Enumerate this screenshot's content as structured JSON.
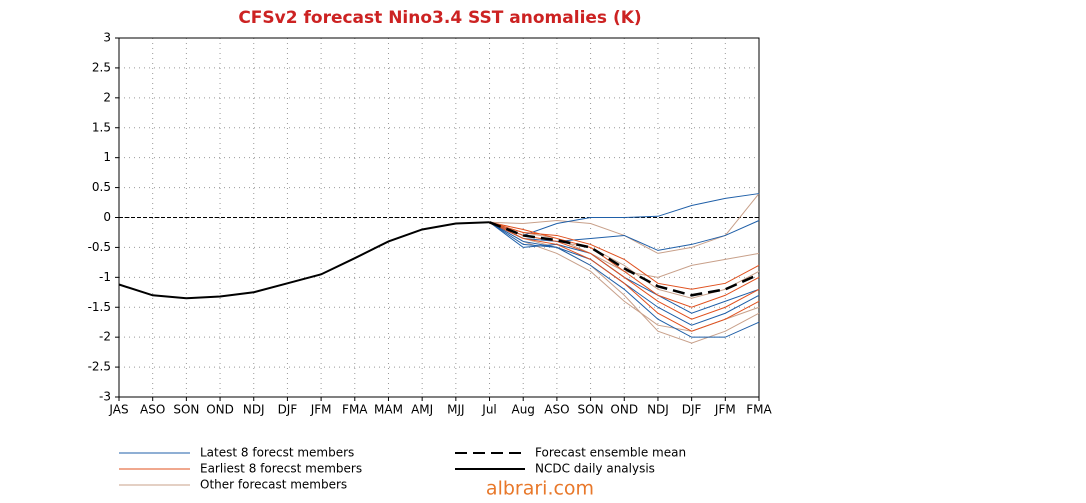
{
  "chart_data": {
    "type": "line",
    "title": "CFSv2 forecast Nino3.4 SST anomalies (K)",
    "categories": [
      "JAS",
      "ASO",
      "SON",
      "OND",
      "NDJ",
      "DJF",
      "JFM",
      "FMA",
      "MAM",
      "AMJ",
      "MJJ",
      "Jul",
      "Aug",
      "ASO",
      "SON",
      "OND",
      "NDJ",
      "DJF",
      "JFM",
      "FMA"
    ],
    "ylim": [
      -3,
      3
    ],
    "yticks": [
      -3,
      -2.5,
      -2,
      -1.5,
      -1,
      -0.5,
      0,
      0.5,
      1,
      1.5,
      2,
      2.5,
      3
    ],
    "grid": true,
    "zero_line": true,
    "series": [
      {
        "name": "Latest 8 forecst members",
        "color": "#1f5fa8",
        "members": [
          [
            null,
            null,
            null,
            null,
            null,
            null,
            null,
            null,
            null,
            null,
            null,
            -0.08,
            -0.3,
            -0.1,
            0,
            0,
            0.02,
            0.2,
            0.32,
            0.4
          ],
          [
            null,
            null,
            null,
            null,
            null,
            null,
            null,
            null,
            null,
            null,
            null,
            -0.08,
            -0.35,
            -0.4,
            -0.35,
            -0.3,
            -0.55,
            -0.45,
            -0.3,
            -0.05
          ],
          [
            null,
            null,
            null,
            null,
            null,
            null,
            null,
            null,
            null,
            null,
            null,
            -0.08,
            -0.4,
            -0.5,
            -0.7,
            -1.1,
            -1.5,
            -1.8,
            -1.6,
            -1.3
          ],
          [
            null,
            null,
            null,
            null,
            null,
            null,
            null,
            null,
            null,
            null,
            null,
            -0.08,
            -0.5,
            -0.45,
            -0.6,
            -1.0,
            -1.3,
            -1.6,
            -1.4,
            -1.2
          ],
          [
            null,
            null,
            null,
            null,
            null,
            null,
            null,
            null,
            null,
            null,
            null,
            -0.08,
            -0.45,
            -0.5,
            -0.8,
            -1.2,
            -1.7,
            -2.0,
            -2.0,
            -1.75
          ]
        ]
      },
      {
        "name": "Earliest 8 forecst members",
        "color": "#e0501e",
        "members": [
          [
            null,
            null,
            null,
            null,
            null,
            null,
            null,
            null,
            null,
            null,
            null,
            -0.08,
            -0.2,
            -0.35,
            -0.5,
            -0.9,
            -1.3,
            -1.5,
            -1.3,
            -1.0
          ],
          [
            null,
            null,
            null,
            null,
            null,
            null,
            null,
            null,
            null,
            null,
            null,
            -0.08,
            -0.3,
            -0.4,
            -0.6,
            -1.0,
            -1.4,
            -1.7,
            -1.5,
            -1.2
          ],
          [
            null,
            null,
            null,
            null,
            null,
            null,
            null,
            null,
            null,
            null,
            null,
            -0.08,
            -0.25,
            -0.3,
            -0.45,
            -0.7,
            -1.1,
            -1.2,
            -1.1,
            -0.8
          ],
          [
            null,
            null,
            null,
            null,
            null,
            null,
            null,
            null,
            null,
            null,
            null,
            -0.08,
            -0.35,
            -0.45,
            -0.7,
            -1.1,
            -1.6,
            -1.9,
            -1.7,
            -1.4
          ]
        ]
      },
      {
        "name": "Other forecast members",
        "color": "#c8a08a",
        "members": [
          [
            null,
            null,
            null,
            null,
            null,
            null,
            null,
            null,
            null,
            null,
            null,
            -0.08,
            -0.1,
            -0.05,
            -0.1,
            -0.3,
            -0.6,
            -0.5,
            -0.3,
            0.4
          ],
          [
            null,
            null,
            null,
            null,
            null,
            null,
            null,
            null,
            null,
            null,
            null,
            -0.08,
            -0.3,
            -0.4,
            -0.5,
            -0.8,
            -1.2,
            -1.35,
            -1.2,
            -0.9
          ],
          [
            null,
            null,
            null,
            null,
            null,
            null,
            null,
            null,
            null,
            null,
            null,
            -0.08,
            -0.35,
            -0.5,
            -0.8,
            -1.3,
            -1.9,
            -2.1,
            -1.9,
            -1.6
          ],
          [
            null,
            null,
            null,
            null,
            null,
            null,
            null,
            null,
            null,
            null,
            null,
            -0.08,
            -0.25,
            -0.35,
            -0.6,
            -0.9,
            -1.0,
            -0.8,
            -0.7,
            -0.6
          ],
          [
            null,
            null,
            null,
            null,
            null,
            null,
            null,
            null,
            null,
            null,
            null,
            -0.08,
            -0.4,
            -0.6,
            -0.9,
            -1.4,
            -1.8,
            -1.9,
            -1.7,
            -1.5
          ]
        ]
      }
    ],
    "lines": [
      {
        "name": "Forecast ensemble mean",
        "color": "#000000",
        "dash": true,
        "values": [
          null,
          null,
          null,
          null,
          null,
          null,
          null,
          null,
          null,
          null,
          null,
          -0.08,
          -0.3,
          -0.38,
          -0.5,
          -0.85,
          -1.15,
          -1.3,
          -1.2,
          -0.95
        ]
      },
      {
        "name": "NCDC daily analysis",
        "color": "#000000",
        "dash": false,
        "values": [
          -1.12,
          -1.3,
          -1.35,
          -1.32,
          -1.25,
          -1.1,
          -0.95,
          -0.68,
          -0.4,
          -0.2,
          -0.1,
          -0.08,
          null,
          null,
          null,
          null,
          null,
          null,
          null,
          null
        ]
      }
    ],
    "watermark": "albrari.com"
  }
}
